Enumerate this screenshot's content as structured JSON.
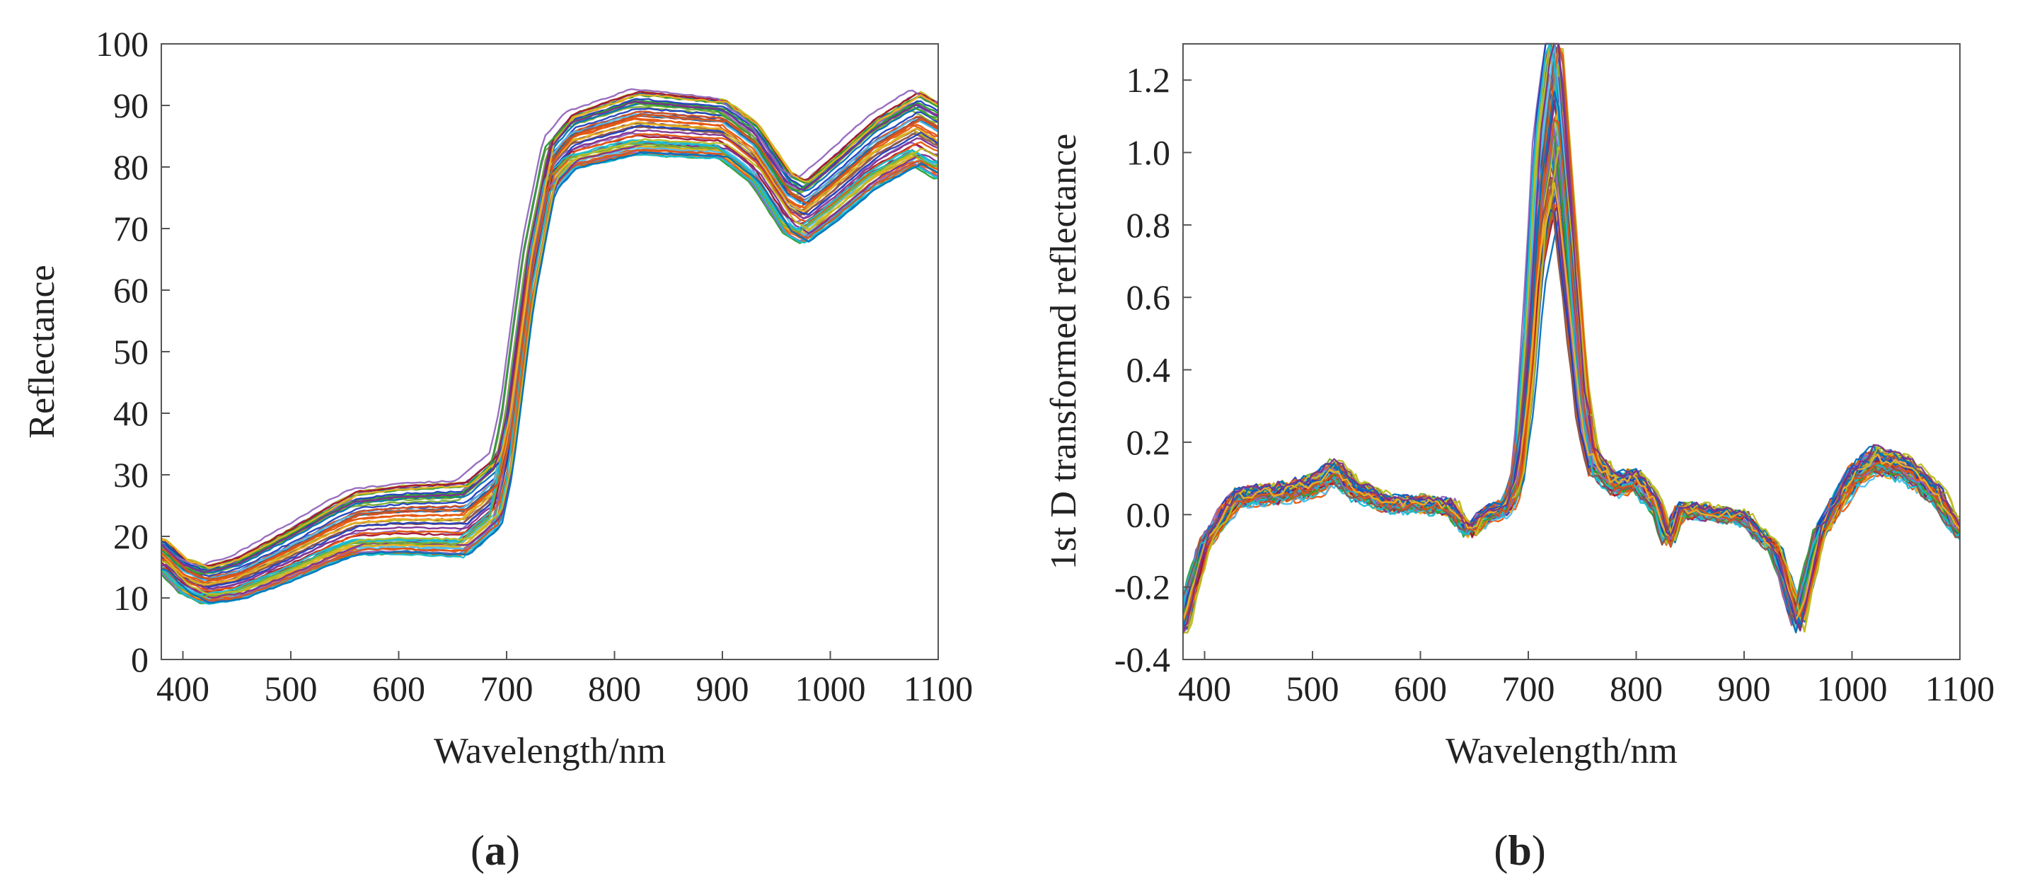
{
  "chart_data": [
    {
      "type": "line",
      "panel_label": "a",
      "xlabel": "Wavelength/nm",
      "ylabel": "Reflectance",
      "xlim": [
        380,
        1100
      ],
      "ylim": [
        0,
        100
      ],
      "xticks": [
        400,
        500,
        600,
        700,
        800,
        900,
        1000,
        1100
      ],
      "yticks": [
        0,
        10,
        20,
        30,
        40,
        50,
        60,
        70,
        80,
        90,
        100
      ],
      "grid": false,
      "legend": "none",
      "series_count_estimate": 60,
      "representative_spectrum": {
        "x": [
          380,
          400,
          420,
          450,
          500,
          540,
          560,
          600,
          660,
          690,
          700,
          720,
          740,
          760,
          800,
          820,
          860,
          900,
          930,
          960,
          975,
          1000,
          1040,
          1080,
          1100
        ],
        "y": [
          17,
          13.5,
          12,
          13,
          17,
          20.5,
          22,
          22.5,
          22.5,
          27,
          35,
          62,
          80,
          84,
          86,
          87,
          86.5,
          86,
          82,
          74,
          72.5,
          76,
          82,
          86,
          84
        ]
      },
      "spread": {
        "x": [
          380,
          420,
          500,
          560,
          660,
          700,
          740,
          820,
          900,
          975,
          1080,
          1100
        ],
        "low": [
          14,
          9,
          12,
          16,
          16,
          26,
          74,
          81,
          80,
          64,
          77,
          76
        ],
        "high": [
          20,
          16,
          22,
          28,
          30,
          40,
          84,
          93,
          91,
          76,
          91,
          90
        ]
      }
    },
    {
      "type": "line",
      "panel_label": "b",
      "xlabel": "Wavelength/nm",
      "ylabel": "1st D transformed reflectance",
      "xlim": [
        380,
        1100
      ],
      "ylim": [
        -0.4,
        1.3
      ],
      "xticks": [
        400,
        500,
        600,
        700,
        800,
        900,
        1000,
        1100
      ],
      "yticks": [
        -0.4,
        -0.2,
        0.0,
        0.2,
        0.4,
        0.6,
        0.8,
        1.0,
        1.2
      ],
      "ytick_labels": [
        "-0.4",
        "-0.2",
        "0.0",
        "0.2",
        "0.4",
        "0.6",
        "0.8",
        "1.0",
        "1.2"
      ],
      "grid": false,
      "legend": "none",
      "series_count_estimate": 60,
      "representative_spectrum": {
        "x": [
          380,
          400,
          430,
          470,
          500,
          520,
          540,
          570,
          600,
          630,
          645,
          660,
          680,
          690,
          700,
          710,
          725,
          740,
          750,
          760,
          780,
          800,
          820,
          830,
          840,
          860,
          900,
          930,
          950,
          970,
          1000,
          1020,
          1050,
          1080,
          1100
        ],
        "y": [
          -0.3,
          -0.08,
          0.05,
          0.06,
          0.08,
          0.12,
          0.07,
          0.03,
          0.03,
          0.02,
          -0.05,
          0.0,
          0.02,
          0.1,
          0.4,
          0.85,
          1.15,
          0.65,
          0.3,
          0.15,
          0.08,
          0.1,
          0.02,
          -0.08,
          0.01,
          0.01,
          -0.01,
          -0.1,
          -0.3,
          -0.05,
          0.1,
          0.15,
          0.13,
          0.05,
          -0.05
        ]
      }
    }
  ]
}
